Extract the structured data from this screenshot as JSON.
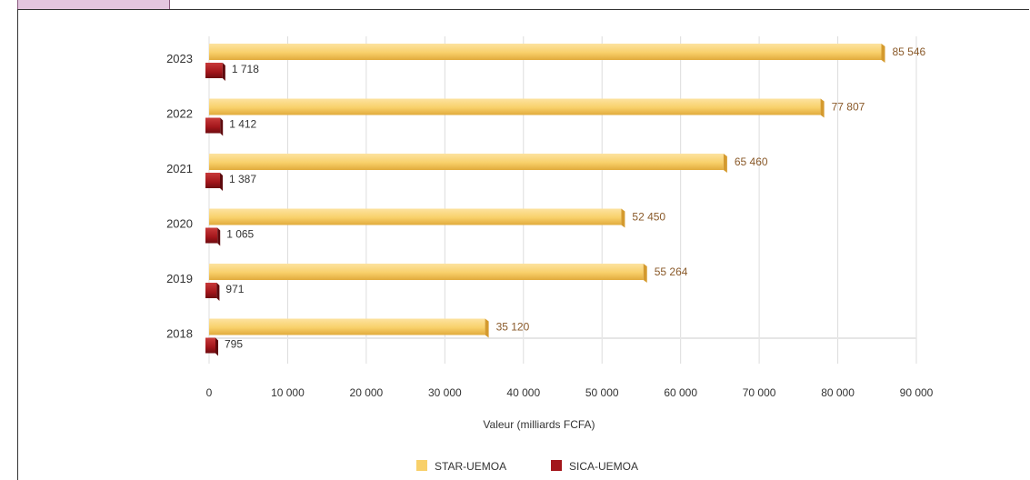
{
  "chart_data": {
    "type": "bar",
    "orientation": "horizontal",
    "categories": [
      "2023",
      "2022",
      "2021",
      "2020",
      "2019",
      "2018"
    ],
    "series": [
      {
        "name": "STAR-UEMOA",
        "values": [
          85546,
          77807,
          65460,
          52450,
          55264,
          35120
        ],
        "value_labels": [
          "85 546",
          "77 807",
          "65 460",
          "52 450",
          "55 264",
          "35 120"
        ],
        "color": "#f8d06a"
      },
      {
        "name": "SICA-UEMOA",
        "values": [
          1718,
          1412,
          1387,
          1065,
          971,
          795
        ],
        "value_labels": [
          "1 718",
          "1 412",
          "1 387",
          "1 065",
          "971",
          "795"
        ],
        "color": "#a3161b"
      }
    ],
    "xlabel": "Valeur (milliards FCFA)",
    "ylabel": "",
    "xlim": [
      0,
      90000
    ],
    "xticks": [
      0,
      10000,
      20000,
      30000,
      40000,
      50000,
      60000,
      70000,
      80000,
      90000
    ],
    "xtick_labels": [
      "0",
      "10 000",
      "20 000",
      "30 000",
      "40 000",
      "50 000",
      "60 000",
      "70 000",
      "80 000",
      "90 000"
    ],
    "grid": true,
    "legend": "bottom"
  }
}
